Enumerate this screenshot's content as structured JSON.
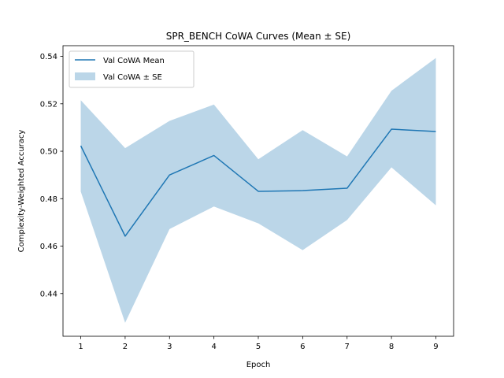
{
  "chart_data": {
    "type": "line",
    "title": "SPR_BENCH CoWA Curves (Mean ± SE)",
    "xlabel": "Epoch",
    "ylabel": "Complexity-Weighted Accuracy",
    "x": [
      1,
      2,
      3,
      4,
      5,
      6,
      7,
      8,
      9
    ],
    "xlim": [
      0.6,
      9.4
    ],
    "ylim": [
      0.422,
      0.5445
    ],
    "x_ticks": [
      1,
      2,
      3,
      4,
      5,
      6,
      7,
      8,
      9
    ],
    "y_ticks": [
      0.44,
      0.46,
      0.48,
      0.5,
      0.52,
      0.54
    ],
    "y_tick_labels": [
      "0.44",
      "0.46",
      "0.48",
      "0.50",
      "0.52",
      "0.54"
    ],
    "grid": false,
    "legend_position": "top-left",
    "series": [
      {
        "name": "Val CoWA Mean",
        "kind": "line",
        "color": "#1f77b4",
        "values": [
          0.5023,
          0.4642,
          0.49,
          0.4982,
          0.4831,
          0.4834,
          0.4844,
          0.5093,
          0.5083
        ]
      },
      {
        "name": "Val CoWA ± SE",
        "kind": "band",
        "color": "#1f77b4",
        "opacity": 0.3,
        "lower": [
          0.483,
          0.4277,
          0.4672,
          0.4767,
          0.4696,
          0.4583,
          0.471,
          0.4932,
          0.4772
        ],
        "upper": [
          0.5215,
          0.5013,
          0.5128,
          0.5197,
          0.4966,
          0.5089,
          0.4978,
          0.5255,
          0.5393
        ]
      }
    ]
  }
}
